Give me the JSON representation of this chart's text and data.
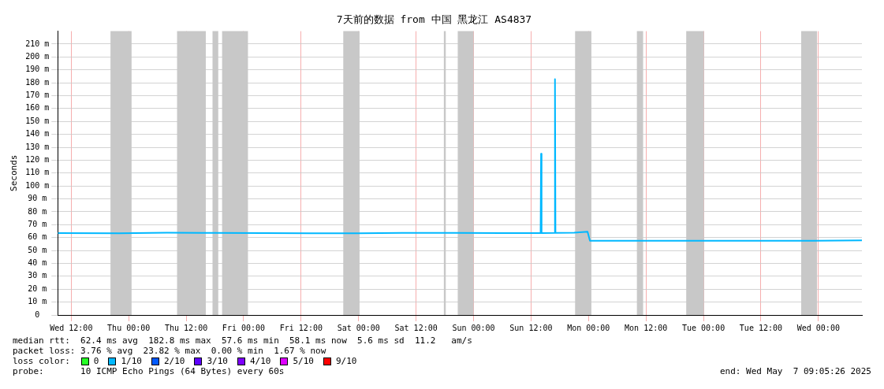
{
  "chart_data": {
    "type": "line",
    "title": "7天前的数据 from 中国 黑龙江 AS4837",
    "ylabel": "Seconds",
    "xlim": [
      "2025-04-30T09:12",
      "2025-05-07T09:05"
    ],
    "xticks": [
      {
        "value": "2025-04-30T12:00",
        "label": "Wed 12:00"
      },
      {
        "value": "2025-05-01T00:00",
        "label": "Thu 00:00"
      },
      {
        "value": "2025-05-01T12:00",
        "label": "Thu 12:00"
      },
      {
        "value": "2025-05-02T00:00",
        "label": "Fri 00:00"
      },
      {
        "value": "2025-05-02T12:00",
        "label": "Fri 12:00"
      },
      {
        "value": "2025-05-03T00:00",
        "label": "Sat 00:00"
      },
      {
        "value": "2025-05-03T12:00",
        "label": "Sat 12:00"
      },
      {
        "value": "2025-05-04T00:00",
        "label": "Sun 00:00"
      },
      {
        "value": "2025-05-04T12:00",
        "label": "Sun 12:00"
      },
      {
        "value": "2025-05-05T00:00",
        "label": "Mon 00:00"
      },
      {
        "value": "2025-05-05T12:00",
        "label": "Mon 12:00"
      },
      {
        "value": "2025-05-06T00:00",
        "label": "Tue 00:00"
      },
      {
        "value": "2025-05-06T12:00",
        "label": "Tue 12:00"
      },
      {
        "value": "2025-05-07T00:00",
        "label": "Wed 00:00"
      }
    ],
    "ylim": [
      0,
      220
    ],
    "yticks": [
      0,
      {
        "value": 10,
        "label": "10 m"
      },
      {
        "value": 20,
        "label": "20 m"
      },
      {
        "value": 30,
        "label": "30 m"
      },
      {
        "value": 40,
        "label": "40 m"
      },
      {
        "value": 50,
        "label": "50 m"
      },
      {
        "value": 60,
        "label": "60 m"
      },
      {
        "value": 70,
        "label": "70 m"
      },
      {
        "value": 80,
        "label": "80 m"
      },
      {
        "value": 90,
        "label": "90 m"
      },
      {
        "value": 100,
        "label": "100 m"
      },
      {
        "value": 110,
        "label": "110 m"
      },
      {
        "value": 120,
        "label": "120 m"
      },
      {
        "value": 130,
        "label": "130 m"
      },
      {
        "value": 140,
        "label": "140 m"
      },
      {
        "value": 150,
        "label": "150 m"
      },
      {
        "value": 160,
        "label": "160 m"
      },
      {
        "value": 170,
        "label": "170 m"
      },
      {
        "value": 180,
        "label": "180 m"
      },
      {
        "value": 190,
        "label": "190 m"
      },
      {
        "value": 200,
        "label": "200 m"
      },
      {
        "value": 210,
        "label": "210 m"
      }
    ],
    "grid": true,
    "legend": false,
    "marker": "none",
    "line_style": "solid",
    "series": [
      {
        "color": "#00b8ff",
        "x": [
          "2025-04-30T09:12",
          "2025-04-30T22:00",
          "2025-05-01T08:00",
          "2025-05-01T18:00",
          "2025-05-02T04:00",
          "2025-05-02T14:00",
          "2025-05-03T00:00",
          "2025-05-03T10:00",
          "2025-05-03T20:00",
          "2025-05-04T06:00",
          "2025-05-04T14:00",
          "2025-05-04T14:06",
          "2025-05-04T14:12",
          "2025-05-04T16:54",
          "2025-05-04T17:00",
          "2025-05-04T17:06",
          "2025-05-04T21:00",
          "2025-05-04T23:48",
          "2025-05-05T00:18",
          "2025-05-05T07:00",
          "2025-05-05T17:00",
          "2025-05-06T03:00",
          "2025-05-06T13:00",
          "2025-05-06T23:00",
          "2025-05-07T09:05"
        ],
        "values": [
          63.5,
          63.4,
          63.8,
          63.6,
          63.5,
          63.4,
          63.3,
          63.6,
          63.6,
          63.5,
          63.5,
          125,
          63.5,
          63.6,
          182.8,
          63.6,
          63.8,
          64.5,
          57.6,
          57.5,
          57.5,
          57.6,
          57.5,
          57.6,
          57.8
        ]
      }
    ],
    "bands": [
      {
        "axis": "x",
        "from": "2025-04-30T20:12",
        "to": "2025-05-01T00:36",
        "color": "#c8c8c8"
      },
      {
        "axis": "x",
        "from": "2025-05-01T10:06",
        "to": "2025-05-01T16:06",
        "color": "#c8c8c8"
      },
      {
        "axis": "x",
        "from": "2025-05-01T17:30",
        "to": "2025-05-01T18:42",
        "color": "#c8c8c8"
      },
      {
        "axis": "x",
        "from": "2025-05-01T19:30",
        "to": "2025-05-02T00:54",
        "color": "#c8c8c8"
      },
      {
        "axis": "x",
        "from": "2025-05-02T20:48",
        "to": "2025-05-03T00:12",
        "color": "#c8c8c8"
      },
      {
        "axis": "x",
        "from": "2025-05-03T17:48",
        "to": "2025-05-03T18:12",
        "color": "#c8c8c8"
      },
      {
        "axis": "x",
        "from": "2025-05-03T20:42",
        "to": "2025-05-04T00:00",
        "color": "#c8c8c8"
      },
      {
        "axis": "x",
        "from": "2025-05-04T21:12",
        "to": "2025-05-05T00:36",
        "color": "#c8c8c8"
      },
      {
        "axis": "x",
        "from": "2025-05-05T10:06",
        "to": "2025-05-05T11:24",
        "color": "#c8c8c8"
      },
      {
        "axis": "x",
        "from": "2025-05-05T20:24",
        "to": "2025-05-06T00:06",
        "color": "#c8c8c8"
      },
      {
        "axis": "x",
        "from": "2025-05-06T20:24",
        "to": "2025-05-06T23:42",
        "color": "#c8c8c8"
      }
    ],
    "annotations": [
      "median rtt:  62.4 ms avg  182.8 ms max  57.6 ms min  58.1 ms now  5.6 ms sd  11.2   am/s",
      "packet loss: 3.76 % avg  23.82 % max  0.00 % min  1.67 % now",
      "loss color:",
      "0",
      "1/10",
      "2/10",
      "3/10",
      "4/10",
      "5/10",
      "9/10",
      "probe:       10 ICMP Echo Pings (64 Bytes) every 60s",
      "end: Wed May  7 09:05:26 2025"
    ]
  }
}
